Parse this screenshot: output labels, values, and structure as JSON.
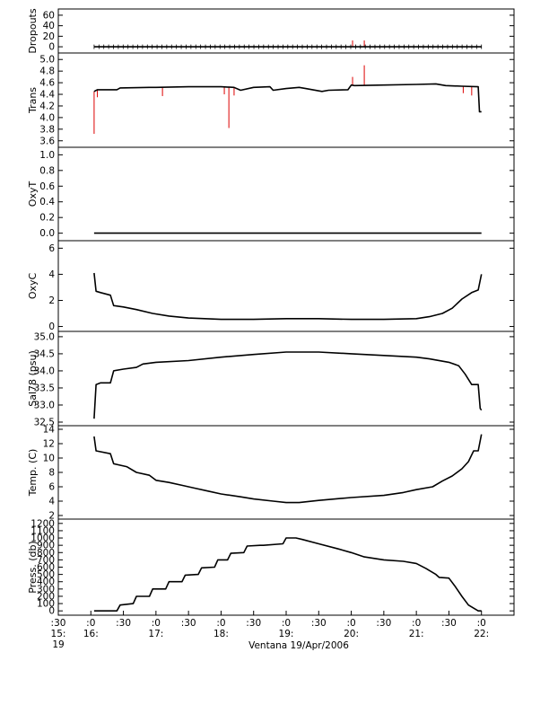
{
  "xaxis": {
    "label": "Ventana 19/Apr/2006",
    "range": [
      15.5,
      22.5
    ],
    "ticks": [
      {
        "x": 15.5,
        "top": ":30",
        "mid": "15:",
        "bot": "19"
      },
      {
        "x": 16.0,
        "top": ":0",
        "mid": "16:",
        "bot": ""
      },
      {
        "x": 16.5,
        "top": ":30",
        "mid": "",
        "bot": ""
      },
      {
        "x": 17.0,
        "top": ":0",
        "mid": "17:",
        "bot": ""
      },
      {
        "x": 17.5,
        "top": ":30",
        "mid": "",
        "bot": ""
      },
      {
        "x": 18.0,
        "top": ":0",
        "mid": "18:",
        "bot": ""
      },
      {
        "x": 18.5,
        "top": ":30",
        "mid": "",
        "bot": ""
      },
      {
        "x": 19.0,
        "top": ":0",
        "mid": "19:",
        "bot": ""
      },
      {
        "x": 19.5,
        "top": ":30",
        "mid": "",
        "bot": ""
      },
      {
        "x": 20.0,
        "top": ":0",
        "mid": "20:",
        "bot": ""
      },
      {
        "x": 20.5,
        "top": ":30",
        "mid": "",
        "bot": ""
      },
      {
        "x": 21.0,
        "top": ":0",
        "mid": "21:",
        "bot": ""
      },
      {
        "x": 21.5,
        "top": ":30",
        "mid": "",
        "bot": ""
      },
      {
        "x": 22.0,
        "top": ":0",
        "mid": "22:",
        "bot": ""
      }
    ]
  },
  "colors": {
    "primary": "#000000",
    "raw": "#dd0000"
  },
  "chart_data": [
    {
      "type": "line",
      "ylabel": "Dropouts",
      "ylim": [
        -5,
        65
      ],
      "yticks": [
        0,
        20,
        40,
        60
      ],
      "ytick_labels": [
        "0",
        "20",
        "40",
        "60"
      ],
      "x": [
        16.05,
        22.0
      ],
      "y": [
        0,
        0
      ],
      "markers": true,
      "spikes": [
        {
          "x": 20.02,
          "y": 12
        },
        {
          "x": 20.2,
          "y": 12
        }
      ]
    },
    {
      "type": "line",
      "ylabel": "Trans",
      "ylim": [
        3.55,
        5.05
      ],
      "yticks": [
        3.6,
        3.8,
        4.0,
        4.2,
        4.4,
        4.6,
        4.8,
        5.0
      ],
      "ytick_labels": [
        "3.6",
        "3.8",
        "4.0",
        "4.2",
        "4.4",
        "4.6",
        "4.8",
        "5.0"
      ],
      "x": [
        16.05,
        16.1,
        16.4,
        16.45,
        16.9,
        17.0,
        17.5,
        18.0,
        18.2,
        18.3,
        18.5,
        18.75,
        18.8,
        19.0,
        19.2,
        19.3,
        19.55,
        19.65,
        19.95,
        20.0,
        20.05,
        20.5,
        21.0,
        21.3,
        21.45,
        21.7,
        21.95,
        21.97,
        22.0
      ],
      "y": [
        4.45,
        4.48,
        4.48,
        4.51,
        4.52,
        4.52,
        4.53,
        4.53,
        4.52,
        4.47,
        4.52,
        4.53,
        4.47,
        4.5,
        4.52,
        4.5,
        4.45,
        4.47,
        4.48,
        4.56,
        4.55,
        4.56,
        4.57,
        4.58,
        4.55,
        4.54,
        4.53,
        4.1,
        4.1
      ],
      "raw_spikes": [
        {
          "x": 16.05,
          "y": 3.72
        },
        {
          "x": 16.1,
          "y": 4.35
        },
        {
          "x": 17.1,
          "y": 4.37
        },
        {
          "x": 18.05,
          "y": 4.4
        },
        {
          "x": 18.12,
          "y": 3.82
        },
        {
          "x": 18.2,
          "y": 4.38
        },
        {
          "x": 20.02,
          "y": 4.7
        },
        {
          "x": 20.2,
          "y": 4.9
        },
        {
          "x": 21.72,
          "y": 4.42
        },
        {
          "x": 21.85,
          "y": 4.38
        }
      ]
    },
    {
      "type": "line",
      "ylabel": "OxyT",
      "ylim": [
        -0.05,
        1.05
      ],
      "yticks": [
        0.0,
        0.2,
        0.4,
        0.6,
        0.8,
        1.0
      ],
      "ytick_labels": [
        "0.0",
        "0.2",
        "0.4",
        "0.6",
        "0.8",
        "1.0"
      ],
      "x": [
        16.05,
        22.0
      ],
      "y": [
        0.0,
        0.0
      ]
    },
    {
      "type": "line",
      "ylabel": "OxyC",
      "ylim": [
        -0.1,
        6.3
      ],
      "yticks": [
        0,
        2,
        4,
        6
      ],
      "ytick_labels": [
        "0",
        "2",
        "4",
        "6"
      ],
      "x": [
        16.05,
        16.08,
        16.15,
        16.3,
        16.35,
        16.5,
        16.7,
        16.95,
        17.2,
        17.5,
        18.0,
        18.5,
        19.0,
        19.5,
        20.0,
        20.5,
        21.0,
        21.2,
        21.4,
        21.55,
        21.7,
        21.85,
        21.95,
        22.0
      ],
      "y": [
        4.1,
        2.7,
        2.6,
        2.4,
        1.6,
        1.5,
        1.3,
        1.0,
        0.8,
        0.65,
        0.55,
        0.55,
        0.6,
        0.6,
        0.55,
        0.55,
        0.6,
        0.75,
        1.0,
        1.4,
        2.1,
        2.6,
        2.8,
        4.0
      ]
    },
    {
      "type": "line",
      "ylabel": "Sal78 (psu)",
      "ylim": [
        32.5,
        35.05
      ],
      "yticks": [
        32.5,
        33.0,
        33.5,
        34.0,
        34.5,
        35.0
      ],
      "ytick_labels": [
        "32.5",
        "33.0",
        "33.5",
        "34.0",
        "34.5",
        "35.0"
      ],
      "x": [
        16.05,
        16.08,
        16.15,
        16.3,
        16.35,
        16.5,
        16.7,
        16.8,
        17.0,
        17.5,
        18.0,
        18.5,
        19.0,
        19.5,
        20.0,
        20.5,
        21.0,
        21.2,
        21.5,
        21.65,
        21.75,
        21.85,
        21.95,
        21.98,
        22.0
      ],
      "y": [
        32.6,
        33.6,
        33.65,
        33.65,
        34.0,
        34.05,
        34.1,
        34.2,
        34.25,
        34.3,
        34.4,
        34.48,
        34.55,
        34.55,
        34.5,
        34.45,
        34.4,
        34.35,
        34.25,
        34.15,
        33.9,
        33.6,
        33.6,
        32.9,
        32.85
      ]
    },
    {
      "type": "line",
      "ylabel": "Temp. (C)",
      "ylim": [
        2,
        14
      ],
      "yticks": [
        2,
        4,
        6,
        8,
        10,
        12,
        14
      ],
      "ytick_labels": [
        "2",
        "4",
        "6",
        "8",
        "10",
        "12",
        "14"
      ],
      "x": [
        16.05,
        16.08,
        16.3,
        16.35,
        16.55,
        16.7,
        16.9,
        17.0,
        17.2,
        17.4,
        17.6,
        17.8,
        18.0,
        18.3,
        18.5,
        18.8,
        19.0,
        19.2,
        19.5,
        20.0,
        20.5,
        20.8,
        21.0,
        21.25,
        21.4,
        21.55,
        21.7,
        21.8,
        21.88,
        21.95,
        22.0
      ],
      "y": [
        13.0,
        11.0,
        10.6,
        9.2,
        8.8,
        8.0,
        7.6,
        6.9,
        6.6,
        6.2,
        5.8,
        5.4,
        5.0,
        4.6,
        4.3,
        4.0,
        3.8,
        3.8,
        4.1,
        4.5,
        4.8,
        5.2,
        5.6,
        6.0,
        6.8,
        7.5,
        8.5,
        9.5,
        11.0,
        11.0,
        13.3
      ]
    },
    {
      "type": "line",
      "ylabel": "Press. (db)",
      "ylim": [
        -10,
        1210
      ],
      "yticks": [
        0,
        100,
        200,
        300,
        400,
        500,
        600,
        700,
        800,
        900,
        1000,
        1100,
        1200
      ],
      "ytick_labels": [
        "0",
        "100",
        "200",
        "300",
        "400",
        "500",
        "600",
        "700",
        "800",
        "900",
        "1000",
        "1100",
        "1200"
      ],
      "x": [
        16.05,
        16.4,
        16.45,
        16.65,
        16.7,
        16.9,
        16.95,
        17.15,
        17.2,
        17.4,
        17.45,
        17.65,
        17.7,
        17.9,
        17.95,
        18.1,
        18.15,
        18.35,
        18.4,
        18.6,
        18.65,
        18.95,
        19.0,
        19.15,
        19.25,
        19.5,
        19.8,
        20.0,
        20.2,
        20.5,
        20.8,
        21.0,
        21.15,
        21.3,
        21.35,
        21.5,
        21.6,
        21.7,
        21.8,
        21.95,
        22.0
      ],
      "y": [
        0,
        0,
        80,
        100,
        200,
        200,
        300,
        300,
        400,
        400,
        490,
        500,
        590,
        600,
        700,
        700,
        790,
        800,
        890,
        900,
        900,
        920,
        1000,
        1000,
        980,
        920,
        850,
        800,
        740,
        700,
        680,
        650,
        580,
        500,
        460,
        450,
        330,
        200,
        80,
        0,
        0
      ]
    }
  ]
}
